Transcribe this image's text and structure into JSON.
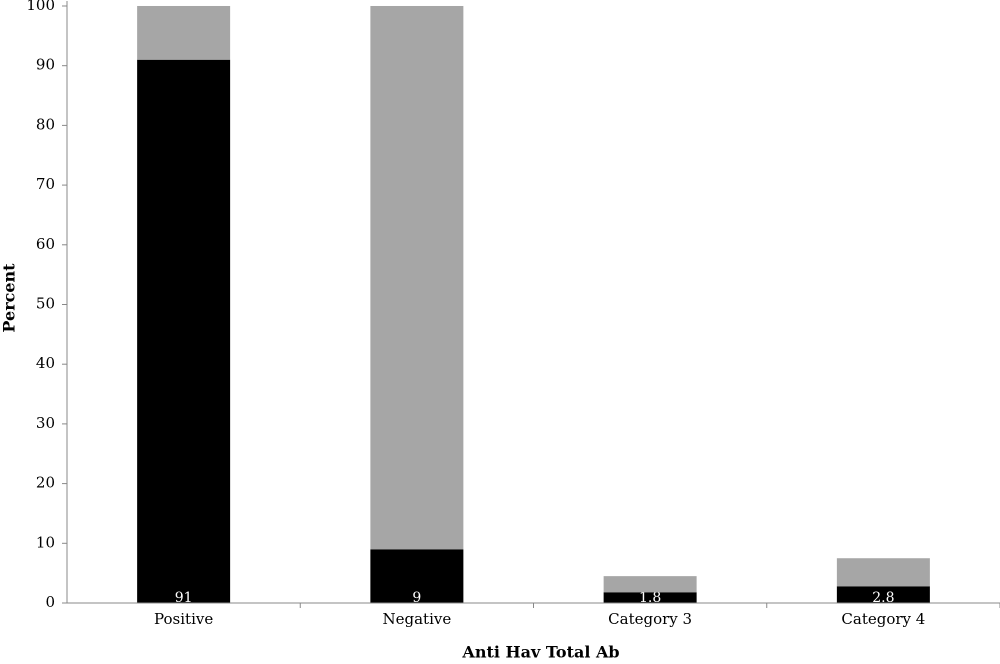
{
  "chart_data": {
    "type": "stacked_bar",
    "x_label": "Anti Hav Total Ab",
    "y_label": "Percent",
    "categories": [
      "Positive",
      "Negative",
      "Category 3",
      "Category 4"
    ],
    "series": [
      {
        "color": "#000000",
        "values": [
          91,
          9,
          1.8,
          2.8
        ]
      },
      {
        "color": "#a6a6a6",
        "values": [
          9,
          91,
          2.7,
          4.7
        ]
      }
    ],
    "ylim": [
      0,
      100.5
    ],
    "yticks": [
      0,
      10,
      20,
      30,
      40,
      50,
      60,
      70,
      80,
      90,
      100
    ]
  }
}
